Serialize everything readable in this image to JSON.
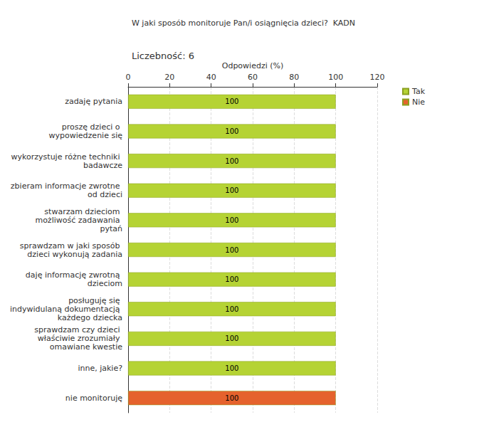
{
  "chart_data": {
    "type": "bar",
    "title": "W jaki sposób monitoruje Pan/i osiągnięcia dzieci?  KADN",
    "subtitle": "Liczebność: 6",
    "x_label": "Odpowiedzi (%)",
    "orientation": "horizontal",
    "stacked": true,
    "data_labels": true,
    "grid": true,
    "legend": "upper right",
    "categories": [
      "zadaję pytania",
      "proszę dzieci o wypowiedzenie się",
      "wykorzystuje różne techniki badawcze",
      "zbieram informacje zwrotne od dzieci",
      "stwarzam dzieciom możliwość zadawania pytań",
      "sprawdzam w jaki sposób dzieci wykonują zadania",
      "daję informację zwrotną dzieciom",
      "posługuję się indywidulaną dokumentacją każdego dziecka",
      "sprawdzam czy dzieci właściwie zrozumiały omawiane kwestie",
      "inne, jakie?",
      "nie monitoruję"
    ],
    "series": [
      {
        "name": "Tak",
        "color": "#b5d334",
        "values": [
          100,
          100,
          100,
          100,
          100,
          100,
          100,
          100,
          100,
          100,
          null
        ]
      },
      {
        "name": "Nie",
        "color": "#e5622d",
        "values": [
          null,
          null,
          null,
          null,
          null,
          null,
          null,
          null,
          null,
          null,
          100
        ]
      }
    ],
    "xlim": [
      0,
      120
    ],
    "xticks": [
      0,
      20,
      40,
      60,
      80,
      100,
      120
    ]
  }
}
